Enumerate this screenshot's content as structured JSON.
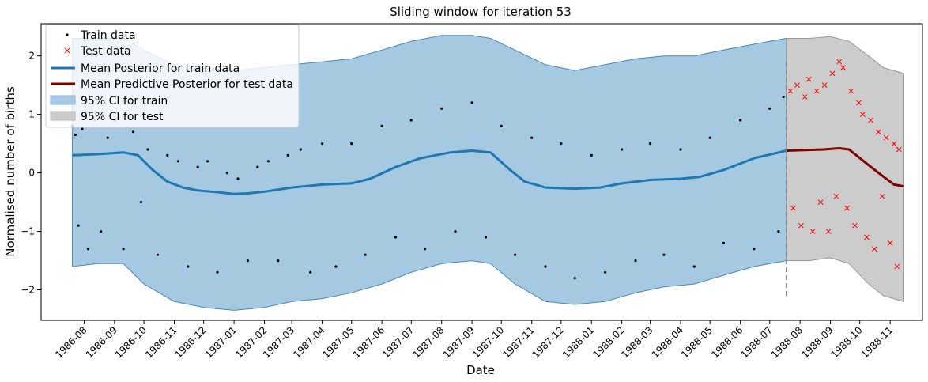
{
  "chart_data": {
    "type": "line",
    "title": "Sliding window for iteration 53",
    "xlabel": "Date",
    "ylabel": "Normalised number of births",
    "xlim": [
      "1986-06-18",
      "1988-12-04"
    ],
    "ylim": [
      -2.52,
      2.55
    ],
    "x_ticks": [
      "1986-08",
      "1986-09",
      "1986-10",
      "1986-11",
      "1986-12",
      "1987-01",
      "1987-02",
      "1987-03",
      "1987-04",
      "1987-05",
      "1987-06",
      "1987-07",
      "1987-08",
      "1987-09",
      "1987-10",
      "1987-11",
      "1987-12",
      "1988-01",
      "1988-02",
      "1988-03",
      "1988-04",
      "1988-05",
      "1988-06",
      "1988-07",
      "1988-08",
      "1988-09",
      "1988-10",
      "1988-11"
    ],
    "y_ticks": [
      -2,
      -1,
      0,
      1,
      2
    ],
    "grid": false,
    "legend_position": "top-left",
    "train_end": "1988-07-18",
    "colors": {
      "train_points": "#000000",
      "test_points": "#ff0000",
      "train_mean": "#1f77b4",
      "test_mean": "#800000",
      "train_ci": "#1f77b4",
      "test_ci": "#808080"
    },
    "series": [
      {
        "name": "Train data",
        "kind": "scatter",
        "note": "daily births, bimodal (weekday ~0.4..1.2, weekend ~-1.5)",
        "points": [
          [
            "1986-07-20",
            0.8
          ],
          [
            "1986-07-23",
            0.65
          ],
          [
            "1986-07-26",
            -0.9
          ],
          [
            "1986-07-30",
            0.75
          ],
          [
            "1986-08-05",
            -1.3
          ],
          [
            "1986-08-12",
            0.9
          ],
          [
            "1986-08-18",
            -1.0
          ],
          [
            "1986-08-25",
            0.6
          ],
          [
            "1986-09-01",
            0.9
          ],
          [
            "1986-09-10",
            -1.3
          ],
          [
            "1986-09-20",
            0.7
          ],
          [
            "1986-09-28",
            -0.5
          ],
          [
            "1986-10-05",
            0.4
          ],
          [
            "1986-10-15",
            -1.4
          ],
          [
            "1986-10-25",
            0.3
          ],
          [
            "1986-11-05",
            0.2
          ],
          [
            "1986-11-15",
            -1.6
          ],
          [
            "1986-11-25",
            0.1
          ],
          [
            "1986-12-05",
            0.2
          ],
          [
            "1986-12-15",
            -1.7
          ],
          [
            "1986-12-25",
            0.0
          ],
          [
            "1987-01-05",
            -0.1
          ],
          [
            "1987-01-15",
            -1.5
          ],
          [
            "1987-01-25",
            0.1
          ],
          [
            "1987-02-05",
            0.2
          ],
          [
            "1987-02-15",
            -1.5
          ],
          [
            "1987-02-25",
            0.3
          ],
          [
            "1987-03-10",
            0.4
          ],
          [
            "1987-03-20",
            -1.7
          ],
          [
            "1987-04-01",
            0.5
          ],
          [
            "1987-04-15",
            -1.6
          ],
          [
            "1987-05-01",
            0.5
          ],
          [
            "1987-05-15",
            -1.4
          ],
          [
            "1987-06-01",
            0.8
          ],
          [
            "1987-06-15",
            -1.1
          ],
          [
            "1987-07-01",
            0.9
          ],
          [
            "1987-07-15",
            -1.3
          ],
          [
            "1987-08-01",
            1.1
          ],
          [
            "1987-08-15",
            -1.0
          ],
          [
            "1987-09-01",
            1.2
          ],
          [
            "1987-09-15",
            -1.1
          ],
          [
            "1987-10-01",
            0.8
          ],
          [
            "1987-10-15",
            -1.4
          ],
          [
            "1987-11-01",
            0.6
          ],
          [
            "1987-11-15",
            -1.6
          ],
          [
            "1987-12-01",
            0.5
          ],
          [
            "1987-12-15",
            -1.8
          ],
          [
            "1988-01-01",
            0.3
          ],
          [
            "1988-01-15",
            -1.7
          ],
          [
            "1988-02-01",
            0.4
          ],
          [
            "1988-02-15",
            -1.5
          ],
          [
            "1988-03-01",
            0.5
          ],
          [
            "1988-03-15",
            -1.4
          ],
          [
            "1988-04-01",
            0.4
          ],
          [
            "1988-04-15",
            -1.6
          ],
          [
            "1988-05-01",
            0.6
          ],
          [
            "1988-05-15",
            -1.2
          ],
          [
            "1988-06-01",
            0.9
          ],
          [
            "1988-06-15",
            -1.3
          ],
          [
            "1988-07-01",
            1.1
          ],
          [
            "1988-07-10",
            -1.0
          ],
          [
            "1988-07-15",
            1.3
          ]
        ]
      },
      {
        "name": "Test data",
        "kind": "scatter",
        "points": [
          [
            "1988-07-22",
            1.4
          ],
          [
            "1988-07-25",
            -0.6
          ],
          [
            "1988-07-29",
            1.5
          ],
          [
            "1988-08-02",
            -0.9
          ],
          [
            "1988-08-06",
            1.3
          ],
          [
            "1988-08-10",
            1.6
          ],
          [
            "1988-08-14",
            -1.0
          ],
          [
            "1988-08-18",
            1.4
          ],
          [
            "1988-08-22",
            -0.5
          ],
          [
            "1988-08-26",
            1.5
          ],
          [
            "1988-08-30",
            -1.0
          ],
          [
            "1988-09-03",
            1.7
          ],
          [
            "1988-09-07",
            -0.4
          ],
          [
            "1988-09-10",
            1.9
          ],
          [
            "1988-09-14",
            1.8
          ],
          [
            "1988-09-18",
            -0.6
          ],
          [
            "1988-09-22",
            1.4
          ],
          [
            "1988-09-26",
            -0.9
          ],
          [
            "1988-09-30",
            1.2
          ],
          [
            "1988-10-04",
            1.0
          ],
          [
            "1988-10-08",
            -1.1
          ],
          [
            "1988-10-12",
            0.9
          ],
          [
            "1988-10-16",
            -1.3
          ],
          [
            "1988-10-20",
            0.7
          ],
          [
            "1988-10-24",
            -0.4
          ],
          [
            "1988-10-28",
            0.6
          ],
          [
            "1988-11-01",
            -1.2
          ],
          [
            "1988-11-05",
            0.5
          ],
          [
            "1988-11-08",
            -1.6
          ],
          [
            "1988-11-10",
            0.4
          ]
        ]
      },
      {
        "name": "Mean Posterior for train data",
        "kind": "line",
        "points": [
          [
            "1986-07-20",
            0.3
          ],
          [
            "1986-08-15",
            0.32
          ],
          [
            "1986-09-10",
            0.35
          ],
          [
            "1986-09-25",
            0.3
          ],
          [
            "1986-10-10",
            0.05
          ],
          [
            "1986-10-25",
            -0.15
          ],
          [
            "1986-11-10",
            -0.25
          ],
          [
            "1986-11-25",
            -0.3
          ],
          [
            "1986-12-15",
            -0.33
          ],
          [
            "1987-01-01",
            -0.36
          ],
          [
            "1987-01-15",
            -0.35
          ],
          [
            "1987-02-01",
            -0.32
          ],
          [
            "1987-03-01",
            -0.25
          ],
          [
            "1987-04-01",
            -0.2
          ],
          [
            "1987-05-01",
            -0.18
          ],
          [
            "1987-05-20",
            -0.1
          ],
          [
            "1987-06-15",
            0.1
          ],
          [
            "1987-07-10",
            0.25
          ],
          [
            "1987-08-10",
            0.35
          ],
          [
            "1987-09-01",
            0.38
          ],
          [
            "1987-09-20",
            0.35
          ],
          [
            "1987-10-10",
            0.05
          ],
          [
            "1987-10-25",
            -0.15
          ],
          [
            "1987-11-15",
            -0.25
          ],
          [
            "1987-12-15",
            -0.27
          ],
          [
            "1988-01-10",
            -0.25
          ],
          [
            "1988-02-01",
            -0.18
          ],
          [
            "1988-03-01",
            -0.12
          ],
          [
            "1988-04-01",
            -0.1
          ],
          [
            "1988-04-20",
            -0.07
          ],
          [
            "1988-05-15",
            0.05
          ],
          [
            "1988-06-15",
            0.25
          ],
          [
            "1988-07-18",
            0.38
          ]
        ]
      },
      {
        "name": "Mean Predictive Posterior for test data",
        "kind": "line",
        "points": [
          [
            "1988-07-18",
            0.38
          ],
          [
            "1988-08-05",
            0.39
          ],
          [
            "1988-08-25",
            0.4
          ],
          [
            "1988-09-10",
            0.42
          ],
          [
            "1988-09-20",
            0.4
          ],
          [
            "1988-10-05",
            0.2
          ],
          [
            "1988-10-20",
            0.0
          ],
          [
            "1988-11-05",
            -0.2
          ],
          [
            "1988-11-15",
            -0.23
          ]
        ]
      },
      {
        "name": "95% CI for train",
        "kind": "band",
        "points": [
          [
            "1986-07-20",
            -1.6,
            2.3
          ],
          [
            "1986-08-15",
            -1.55,
            2.3
          ],
          [
            "1986-09-10",
            -1.55,
            2.3
          ],
          [
            "1986-10-01",
            -1.9,
            2.1
          ],
          [
            "1986-11-01",
            -2.2,
            1.85
          ],
          [
            "1986-12-01",
            -2.3,
            1.8
          ],
          [
            "1987-01-01",
            -2.35,
            1.75
          ],
          [
            "1987-02-01",
            -2.3,
            1.8
          ],
          [
            "1987-03-01",
            -2.2,
            1.85
          ],
          [
            "1987-04-01",
            -2.15,
            1.9
          ],
          [
            "1987-05-01",
            -2.05,
            1.95
          ],
          [
            "1987-06-01",
            -1.9,
            2.1
          ],
          [
            "1987-07-01",
            -1.7,
            2.25
          ],
          [
            "1987-08-01",
            -1.55,
            2.35
          ],
          [
            "1987-09-01",
            -1.5,
            2.35
          ],
          [
            "1987-09-20",
            -1.55,
            2.3
          ],
          [
            "1987-10-15",
            -1.9,
            2.1
          ],
          [
            "1987-11-15",
            -2.2,
            1.85
          ],
          [
            "1987-12-15",
            -2.25,
            1.75
          ],
          [
            "1988-01-15",
            -2.2,
            1.85
          ],
          [
            "1988-02-15",
            -2.05,
            1.95
          ],
          [
            "1988-03-15",
            -1.95,
            2.0
          ],
          [
            "1988-04-15",
            -1.9,
            2.0
          ],
          [
            "1988-05-15",
            -1.75,
            2.1
          ],
          [
            "1988-06-15",
            -1.6,
            2.2
          ],
          [
            "1988-07-18",
            -1.5,
            2.3
          ]
        ]
      },
      {
        "name": "95% CI for test",
        "kind": "band",
        "points": [
          [
            "1988-07-18",
            -1.5,
            2.3
          ],
          [
            "1988-08-10",
            -1.5,
            2.3
          ],
          [
            "1988-09-01",
            -1.45,
            2.33
          ],
          [
            "1988-09-20",
            -1.55,
            2.25
          ],
          [
            "1988-10-10",
            -1.9,
            2.0
          ],
          [
            "1988-10-25",
            -2.1,
            1.8
          ],
          [
            "1988-11-15",
            -2.2,
            1.7
          ]
        ]
      }
    ],
    "legend": [
      "Train data",
      "Test data",
      "Mean Posterior for train data",
      "Mean Predictive Posterior for test data",
      "95% CI for train",
      "95% CI for test"
    ]
  }
}
